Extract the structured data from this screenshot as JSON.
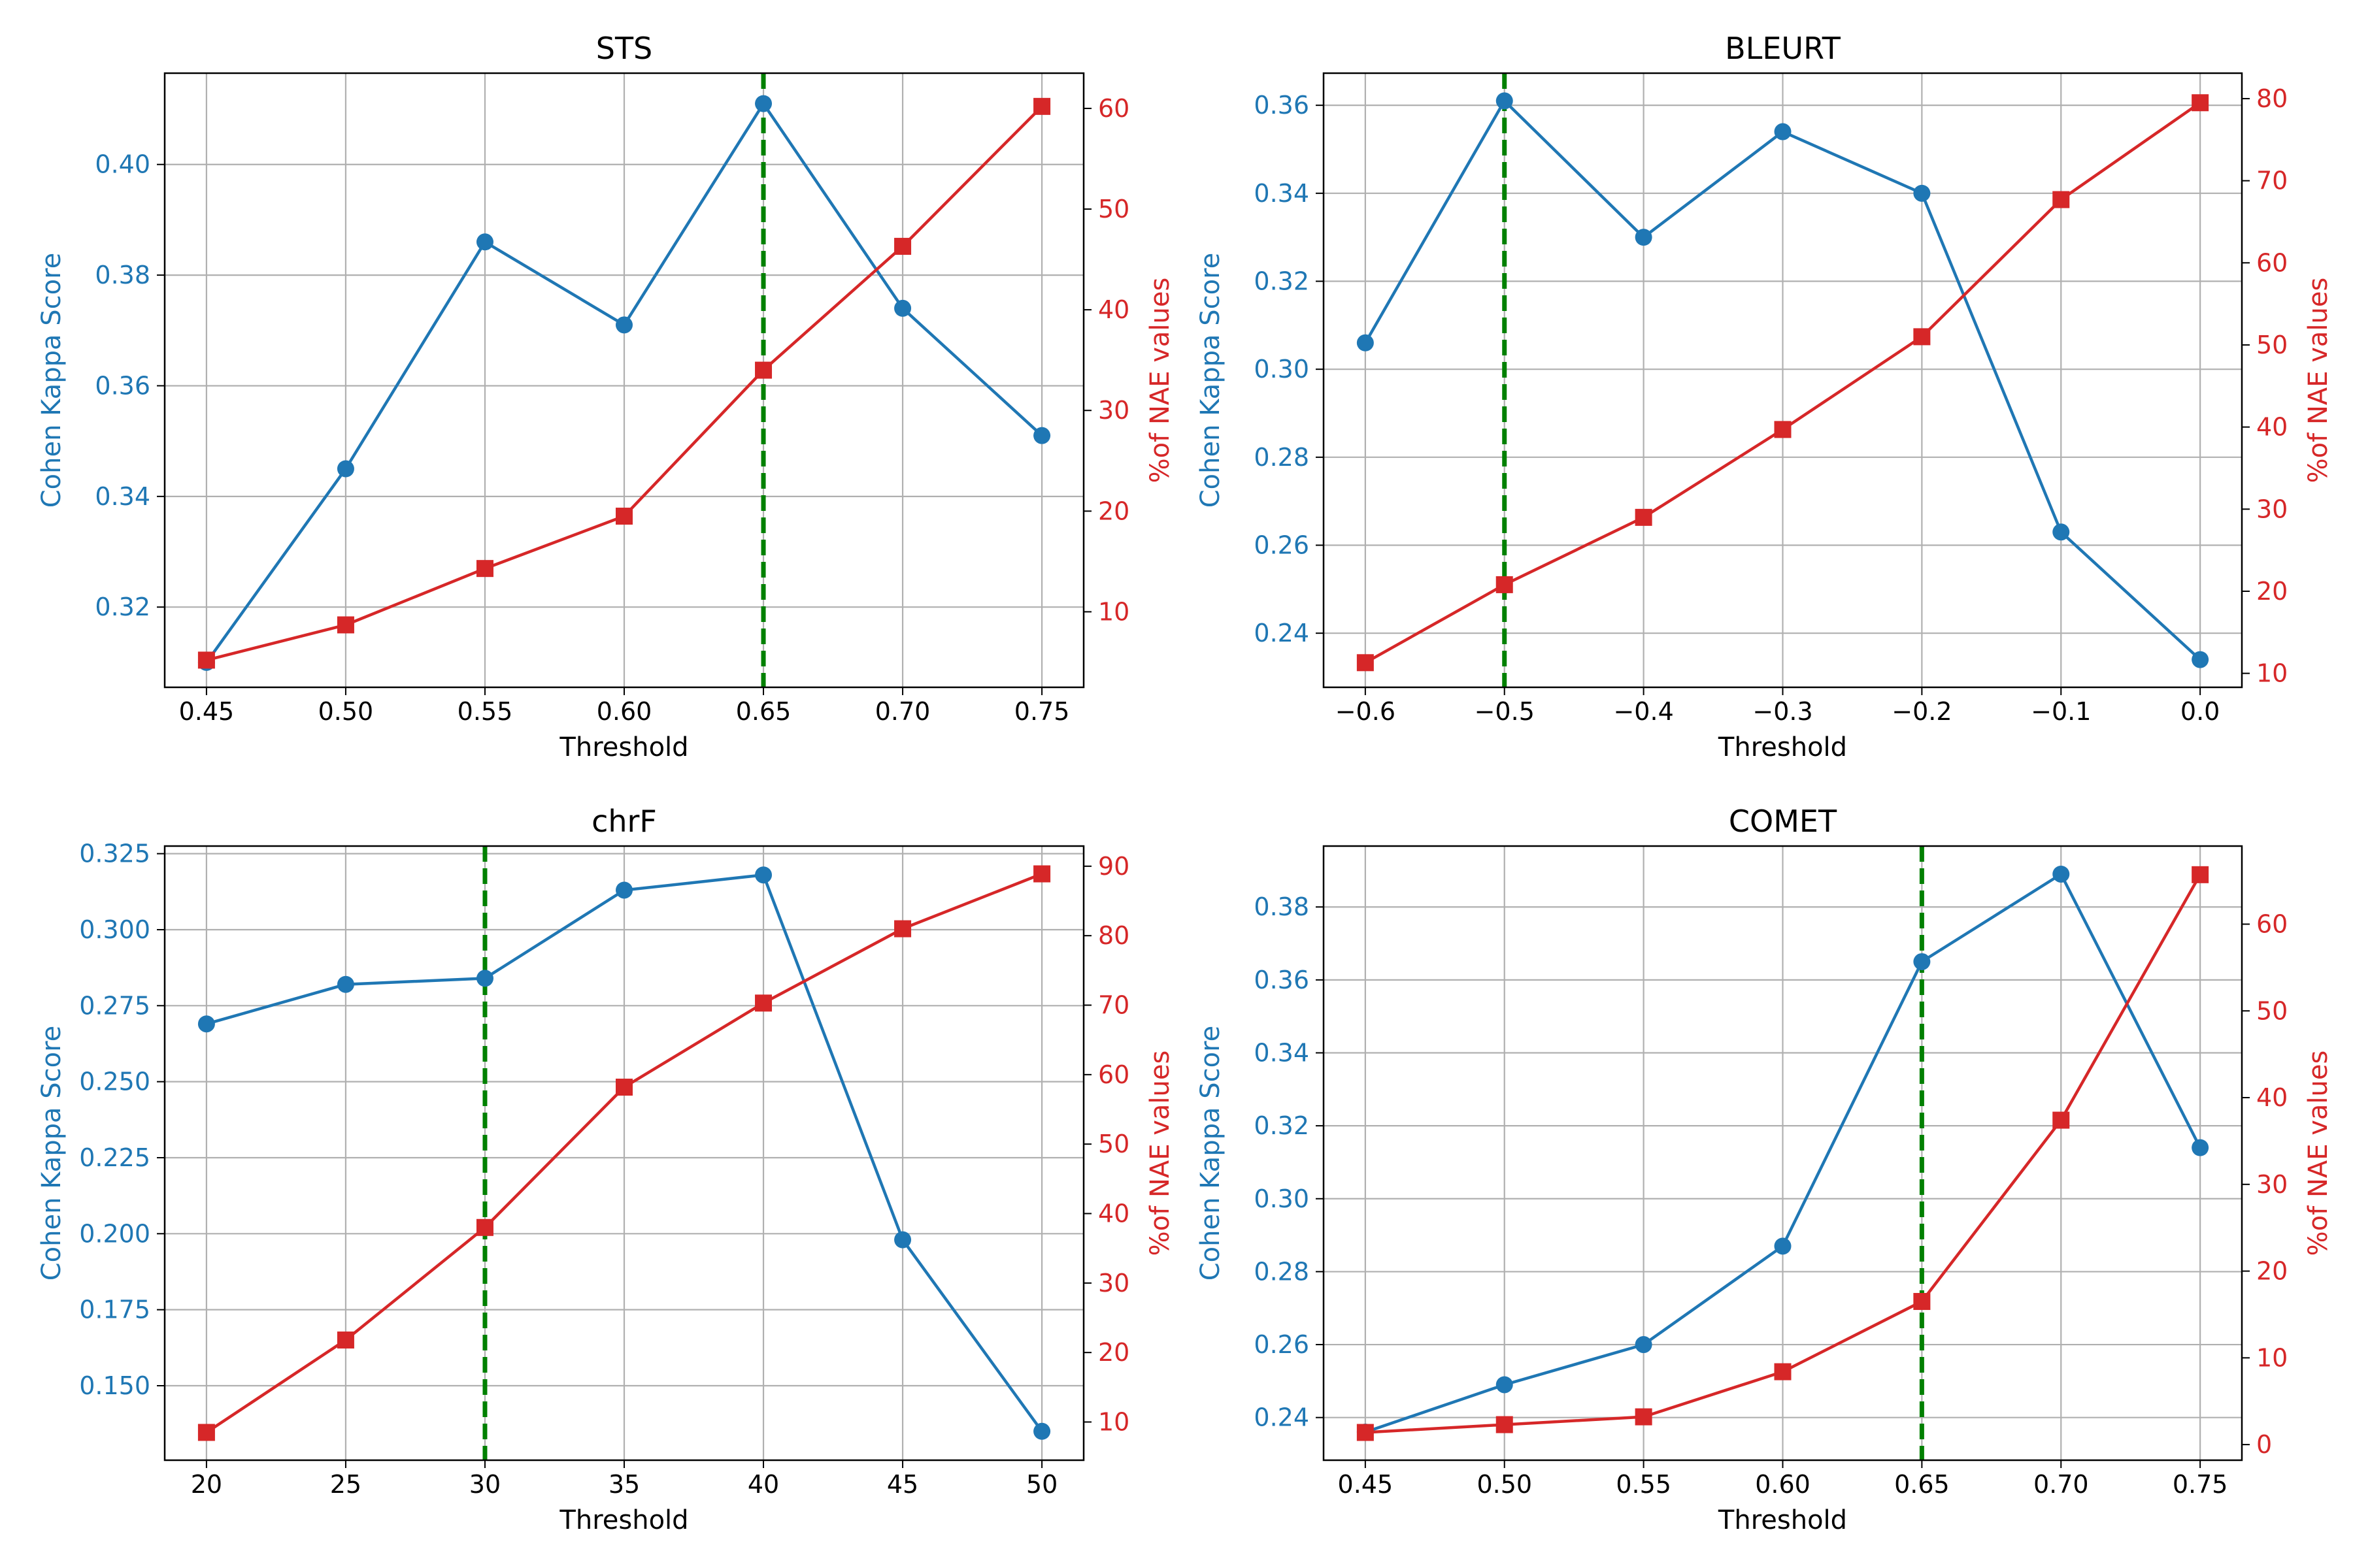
{
  "colors": {
    "kappa": "#1f77b4",
    "nae": "#d62728",
    "best": "#008000",
    "grid": "#b0b0b0",
    "axis": "#000000"
  },
  "chart_data": [
    {
      "type": "line",
      "title": "STS",
      "xlabel": "Threshold",
      "ylabel_left": "Cohen Kappa Score",
      "ylabel_right": "%of NAE values",
      "x": [
        0.45,
        0.5,
        0.55,
        0.6,
        0.65,
        0.7,
        0.75
      ],
      "x_tick_labels": [
        "0.45",
        "0.50",
        "0.55",
        "0.60",
        "0.65",
        "0.70",
        "0.75"
      ],
      "xlim": [
        0.435,
        0.765
      ],
      "series": [
        {
          "name": "Cohen Kappa Score",
          "axis": "left",
          "marker": "circle",
          "values": [
            0.31,
            0.345,
            0.386,
            0.371,
            0.411,
            0.374,
            0.351
          ]
        },
        {
          "name": "%of NAE values",
          "axis": "right",
          "marker": "square",
          "values": [
            5.2,
            8.7,
            14.3,
            19.5,
            34.0,
            46.3,
            60.2
          ]
        }
      ],
      "ylim_left": [
        0.3055,
        0.4165
      ],
      "yticks_left": [
        0.32,
        0.34,
        0.36,
        0.38,
        0.4
      ],
      "ytick_labels_left": [
        "0.32",
        "0.34",
        "0.36",
        "0.38",
        "0.40"
      ],
      "ylim_right": [
        2.5,
        63.5
      ],
      "yticks_right": [
        10,
        20,
        30,
        40,
        50,
        60
      ],
      "ytick_labels_right": [
        "10",
        "20",
        "30",
        "40",
        "50",
        "60"
      ],
      "best_threshold": 0.65,
      "grid": true
    },
    {
      "type": "line",
      "title": "BLEURT",
      "xlabel": "Threshold",
      "ylabel_left": "Cohen Kappa Score",
      "ylabel_right": "%of NAE values",
      "x": [
        -0.6,
        -0.5,
        -0.4,
        -0.3,
        -0.2,
        -0.1,
        0.0
      ],
      "x_tick_labels": [
        "−0.6",
        "−0.5",
        "−0.4",
        "−0.3",
        "−0.2",
        "−0.1",
        "0.0"
      ],
      "xlim": [
        -0.63,
        0.03
      ],
      "series": [
        {
          "name": "Cohen Kappa Score",
          "axis": "left",
          "marker": "circle",
          "values": [
            0.306,
            0.361,
            0.33,
            0.354,
            0.34,
            0.263,
            0.234
          ]
        },
        {
          "name": "%of NAE values",
          "axis": "right",
          "marker": "square",
          "values": [
            11.3,
            20.8,
            29.0,
            39.7,
            51.0,
            67.7,
            79.5
          ]
        }
      ],
      "ylim_left": [
        0.2277,
        0.3673
      ],
      "yticks_left": [
        0.24,
        0.26,
        0.28,
        0.3,
        0.32,
        0.34,
        0.36
      ],
      "ytick_labels_left": [
        "0.24",
        "0.26",
        "0.28",
        "0.30",
        "0.32",
        "0.34",
        "0.36"
      ],
      "ylim_right": [
        8.3,
        83.1
      ],
      "yticks_right": [
        10,
        20,
        30,
        40,
        50,
        60,
        70,
        80
      ],
      "ytick_labels_right": [
        "10",
        "20",
        "30",
        "40",
        "50",
        "60",
        "70",
        "80"
      ],
      "best_threshold": -0.5,
      "grid": true
    },
    {
      "type": "line",
      "title": "chrF",
      "xlabel": "Threshold",
      "ylabel_left": "Cohen Kappa Score",
      "ylabel_right": "%of NAE values",
      "x": [
        20,
        25,
        30,
        35,
        40,
        45,
        50
      ],
      "x_tick_labels": [
        "20",
        "25",
        "30",
        "35",
        "40",
        "45",
        "50"
      ],
      "xlim": [
        18.5,
        51.5
      ],
      "series": [
        {
          "name": "Cohen Kappa Score",
          "axis": "left",
          "marker": "circle",
          "values": [
            0.269,
            0.282,
            0.284,
            0.313,
            0.318,
            0.198,
            0.135
          ]
        },
        {
          "name": "%of NAE values",
          "axis": "right",
          "marker": "square",
          "values": [
            8.5,
            21.8,
            38.0,
            58.2,
            70.3,
            81.0,
            88.9
          ]
        }
      ],
      "ylim_left": [
        0.1255,
        0.3275
      ],
      "yticks_left": [
        0.15,
        0.175,
        0.2,
        0.225,
        0.25,
        0.275,
        0.3,
        0.325
      ],
      "ytick_labels_left": [
        "0.150",
        "0.175",
        "0.200",
        "0.225",
        "0.250",
        "0.275",
        "0.300",
        "0.325"
      ],
      "ylim_right": [
        4.5,
        92.9
      ],
      "yticks_right": [
        10,
        20,
        30,
        40,
        50,
        60,
        70,
        80,
        90
      ],
      "ytick_labels_right": [
        "10",
        "20",
        "30",
        "40",
        "50",
        "60",
        "70",
        "80",
        "90"
      ],
      "best_threshold": 30,
      "grid": true
    },
    {
      "type": "line",
      "title": "COMET",
      "xlabel": "Threshold",
      "ylabel_left": "Cohen Kappa Score",
      "ylabel_right": "%of NAE values",
      "x": [
        0.45,
        0.5,
        0.55,
        0.6,
        0.65,
        0.7,
        0.75
      ],
      "x_tick_labels": [
        "0.45",
        "0.50",
        "0.55",
        "0.60",
        "0.65",
        "0.70",
        "0.75"
      ],
      "xlim": [
        0.435,
        0.765
      ],
      "series": [
        {
          "name": "Cohen Kappa Score",
          "axis": "left",
          "marker": "circle",
          "values": [
            0.236,
            0.249,
            0.26,
            0.287,
            0.365,
            0.389,
            0.314
          ]
        },
        {
          "name": "%of NAE values",
          "axis": "right",
          "marker": "square",
          "values": [
            1.4,
            2.3,
            3.2,
            8.4,
            16.5,
            37.4,
            65.7
          ]
        }
      ],
      "ylim_left": [
        0.2283,
        0.3967
      ],
      "yticks_left": [
        0.24,
        0.26,
        0.28,
        0.3,
        0.32,
        0.34,
        0.36,
        0.38
      ],
      "ytick_labels_left": [
        "0.24",
        "0.26",
        "0.28",
        "0.30",
        "0.32",
        "0.34",
        "0.36",
        "0.38"
      ],
      "ylim_right": [
        -1.8,
        69.0
      ],
      "yticks_right": [
        0,
        10,
        20,
        30,
        40,
        50,
        60
      ],
      "ytick_labels_right": [
        "0",
        "10",
        "20",
        "30",
        "40",
        "50",
        "60"
      ],
      "best_threshold": 0.65,
      "grid": true
    }
  ]
}
